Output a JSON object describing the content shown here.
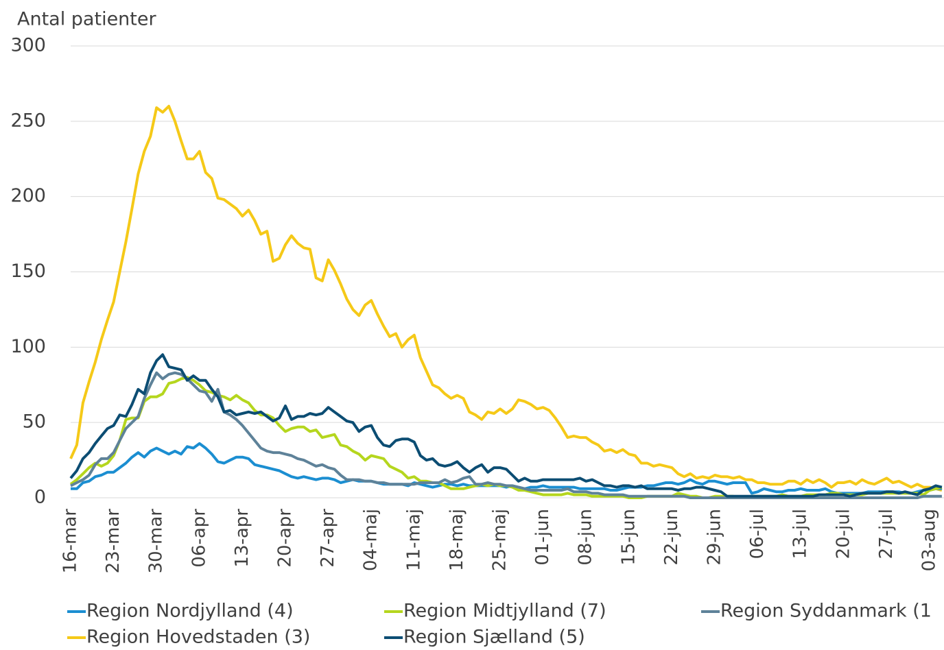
{
  "chart_data": {
    "type": "line",
    "title": "Antal patienter",
    "categories": [
      "16-mar",
      null,
      null,
      null,
      null,
      null,
      null,
      "23-mar",
      null,
      null,
      null,
      null,
      null,
      null,
      "30-mar",
      null,
      null,
      null,
      null,
      null,
      null,
      "06-apr",
      null,
      null,
      null,
      null,
      null,
      null,
      "13-apr",
      null,
      null,
      null,
      null,
      null,
      null,
      "20-apr",
      null,
      null,
      null,
      null,
      null,
      null,
      "27-apr",
      null,
      null,
      null,
      null,
      null,
      null,
      "04-maj",
      null,
      null,
      null,
      null,
      null,
      null,
      "11-maj",
      null,
      null,
      null,
      null,
      null,
      null,
      "18-maj",
      null,
      null,
      null,
      null,
      null,
      null,
      "25-maj",
      null,
      null,
      null,
      null,
      null,
      null,
      "01-jun",
      null,
      null,
      null,
      null,
      null,
      null,
      "08-jun",
      null,
      null,
      null,
      null,
      null,
      null,
      "15-jun",
      null,
      null,
      null,
      null,
      null,
      null,
      "22-jun",
      null,
      null,
      null,
      null,
      null,
      null,
      "29-jun",
      null,
      null,
      null,
      null,
      null,
      null,
      "06-jul",
      null,
      null,
      null,
      null,
      null,
      null,
      "13-jul",
      null,
      null,
      null,
      null,
      null,
      null,
      "20-jul",
      null,
      null,
      null,
      null,
      null,
      null,
      "27-jul",
      null,
      null,
      null,
      null,
      null,
      null,
      "03-aug",
      null,
      null
    ],
    "series": [
      {
        "name": "Region Nordjylland (4)",
        "color": "#1b8ed1",
        "values": [
          6,
          6,
          10,
          11,
          14,
          15,
          17,
          17,
          20,
          23,
          27,
          30,
          27,
          31,
          33,
          31,
          29,
          31,
          29,
          34,
          33,
          36,
          33,
          29,
          24,
          23,
          25,
          27,
          27,
          26,
          22,
          21,
          20,
          19,
          18,
          16,
          14,
          13,
          14,
          13,
          12,
          13,
          13,
          12,
          10,
          11,
          12,
          11,
          11,
          11,
          10,
          9,
          9,
          9,
          9,
          8,
          10,
          9,
          8,
          7,
          8,
          9,
          9,
          8,
          9,
          8,
          8,
          8,
          8,
          8,
          8,
          7,
          8,
          7,
          6,
          7,
          7,
          8,
          7,
          7,
          7,
          7,
          7,
          6,
          6,
          6,
          6,
          6,
          5,
          5,
          6,
          7,
          7,
          7,
          8,
          8,
          9,
          10,
          10,
          9,
          10,
          12,
          10,
          9,
          11,
          11,
          10,
          9,
          10,
          10,
          10,
          3,
          4,
          6,
          5,
          4,
          4,
          5,
          5,
          6,
          5,
          5,
          5,
          6,
          4,
          3,
          3,
          3,
          3,
          3,
          4,
          4,
          4,
          4,
          4,
          4,
          3,
          3,
          4,
          5,
          5,
          6,
          6
        ]
      },
      {
        "name": "Region Midtjylland (7)",
        "color": "#b5d61e",
        "values": [
          9,
          12,
          16,
          20,
          23,
          21,
          23,
          28,
          38,
          52,
          53,
          53,
          64,
          67,
          67,
          69,
          76,
          77,
          79,
          80,
          78,
          75,
          71,
          70,
          68,
          67,
          65,
          68,
          65,
          63,
          58,
          55,
          55,
          53,
          48,
          44,
          46,
          47,
          47,
          44,
          45,
          40,
          41,
          42,
          35,
          34,
          31,
          29,
          25,
          28,
          27,
          26,
          21,
          19,
          17,
          13,
          14,
          11,
          11,
          10,
          10,
          8,
          6,
          6,
          6,
          7,
          8,
          9,
          8,
          9,
          8,
          8,
          7,
          5,
          5,
          4,
          3,
          2,
          2,
          2,
          2,
          3,
          2,
          2,
          2,
          1,
          1,
          1,
          1,
          1,
          1,
          0,
          0,
          0,
          1,
          1,
          1,
          1,
          1,
          3,
          2,
          1,
          1,
          0,
          0,
          1,
          1,
          1,
          1,
          0,
          0,
          1,
          1,
          1,
          1,
          1,
          2,
          1,
          1,
          1,
          2,
          2,
          2,
          2,
          3,
          3,
          2,
          2,
          2,
          2,
          3,
          3,
          3,
          3,
          3,
          3,
          3,
          3,
          3,
          2,
          5,
          6,
          7
        ]
      },
      {
        "name": "Region Syddanmark (1",
        "color": "#5e8299",
        "values": [
          8,
          10,
          12,
          15,
          22,
          26,
          26,
          30,
          38,
          46,
          50,
          54,
          66,
          75,
          83,
          79,
          82,
          83,
          82,
          79,
          75,
          71,
          70,
          64,
          72,
          57,
          55,
          52,
          48,
          43,
          38,
          33,
          31,
          30,
          30,
          29,
          28,
          26,
          25,
          23,
          21,
          22,
          20,
          19,
          15,
          12,
          12,
          12,
          11,
          11,
          10,
          10,
          9,
          9,
          9,
          9,
          9,
          10,
          10,
          10,
          10,
          12,
          10,
          11,
          13,
          14,
          9,
          9,
          10,
          9,
          9,
          8,
          8,
          7,
          6,
          5,
          5,
          5,
          5,
          5,
          5,
          6,
          4,
          4,
          4,
          3,
          3,
          2,
          2,
          2,
          2,
          1,
          1,
          1,
          1,
          1,
          1,
          1,
          1,
          1,
          1,
          0,
          0,
          0,
          0,
          0,
          0,
          0,
          0,
          0,
          0,
          0,
          0,
          0,
          0,
          0,
          0,
          0,
          0,
          0,
          0,
          0,
          0,
          0,
          0,
          0,
          0,
          0,
          0,
          0,
          0,
          0,
          0,
          0,
          0,
          0,
          0,
          0,
          0,
          1,
          1,
          1,
          1
        ]
      },
      {
        "name": "Region Hovedstaden (3)",
        "color": "#f5c918",
        "values": [
          26,
          35,
          63,
          77,
          90,
          105,
          118,
          130,
          150,
          170,
          192,
          215,
          230,
          240,
          259,
          256,
          260,
          250,
          237,
          225,
          225,
          230,
          216,
          212,
          199,
          198,
          195,
          192,
          187,
          191,
          184,
          175,
          177,
          157,
          159,
          168,
          174,
          169,
          166,
          165,
          146,
          144,
          158,
          151,
          142,
          132,
          125,
          121,
          128,
          131,
          122,
          114,
          107,
          109,
          100,
          105,
          108,
          93,
          84,
          75,
          73,
          69,
          66,
          68,
          66,
          57,
          55,
          52,
          57,
          56,
          59,
          56,
          59,
          65,
          64,
          62,
          59,
          60,
          58,
          53,
          47,
          40,
          41,
          40,
          40,
          37,
          35,
          31,
          32,
          30,
          32,
          29,
          28,
          23,
          23,
          21,
          22,
          21,
          20,
          16,
          14,
          16,
          13,
          14,
          13,
          15,
          14,
          14,
          13,
          14,
          12,
          12,
          10,
          10,
          9,
          9,
          9,
          11,
          11,
          9,
          12,
          10,
          12,
          10,
          7,
          10,
          10,
          11,
          9,
          12,
          10,
          9,
          11,
          13,
          10,
          11,
          9,
          7,
          9,
          7,
          7,
          6,
          5
        ]
      },
      {
        "name": "Region Sjælland (5)",
        "color": "#0c4d73",
        "values": [
          13,
          18,
          26,
          30,
          36,
          41,
          46,
          48,
          55,
          54,
          62,
          72,
          69,
          83,
          91,
          95,
          87,
          86,
          85,
          78,
          81,
          78,
          78,
          72,
          67,
          57,
          58,
          55,
          56,
          57,
          56,
          57,
          54,
          51,
          53,
          61,
          52,
          54,
          54,
          56,
          55,
          56,
          60,
          57,
          54,
          51,
          50,
          44,
          47,
          48,
          40,
          35,
          34,
          38,
          39,
          39,
          37,
          28,
          25,
          26,
          22,
          21,
          22,
          24,
          20,
          17,
          20,
          22,
          17,
          20,
          20,
          19,
          15,
          11,
          13,
          11,
          11,
          12,
          12,
          12,
          12,
          12,
          12,
          13,
          11,
          12,
          10,
          8,
          8,
          7,
          8,
          8,
          7,
          8,
          6,
          6,
          6,
          6,
          6,
          5,
          6,
          6,
          7,
          7,
          6,
          5,
          4,
          1,
          1,
          1,
          1,
          1,
          1,
          1,
          1,
          1,
          1,
          1,
          1,
          1,
          1,
          1,
          2,
          2,
          2,
          2,
          2,
          1,
          2,
          3,
          3,
          3,
          3,
          4,
          4,
          3,
          4,
          3,
          2,
          5,
          6,
          8,
          7
        ]
      }
    ],
    "ylim": [
      0,
      300
    ],
    "yticks": [
      0,
      50,
      100,
      150,
      200,
      250,
      300
    ],
    "grid": true,
    "legend": "bottom"
  }
}
